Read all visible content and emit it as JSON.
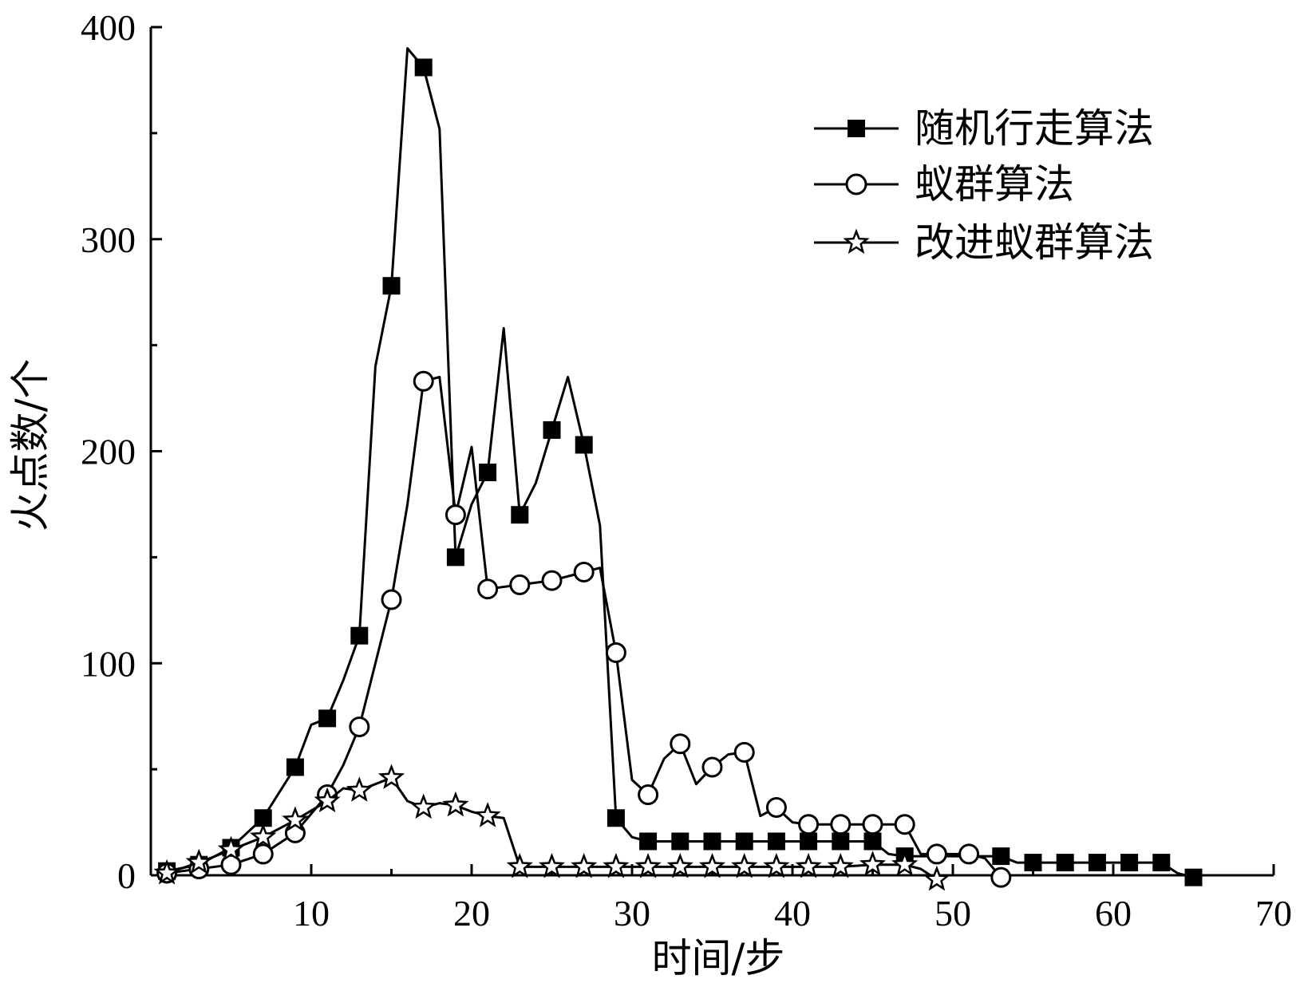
{
  "chart_data": {
    "type": "line",
    "xlabel": "时间/步",
    "ylabel": "火点数/个",
    "xlim": [
      0,
      70
    ],
    "ylim": [
      0,
      400
    ],
    "x_ticks": [
      "10",
      "20",
      "30",
      "40",
      "50",
      "60",
      "70"
    ],
    "y_ticks": [
      "0",
      "100",
      "200",
      "300",
      "400"
    ],
    "grid": false,
    "legend_position": "top-right",
    "series": [
      {
        "name": "随机行走算法",
        "marker": "filled-square",
        "line": [
          [
            1,
            2
          ],
          [
            3,
            5
          ],
          [
            5,
            13
          ],
          [
            7,
            27
          ],
          [
            9,
            51
          ],
          [
            10,
            71
          ],
          [
            11,
            74
          ],
          [
            12,
            92
          ],
          [
            13,
            113
          ],
          [
            14,
            240
          ],
          [
            15,
            278
          ],
          [
            16,
            390
          ],
          [
            17,
            381
          ],
          [
            18,
            352
          ],
          [
            19,
            150
          ],
          [
            20,
            175
          ],
          [
            21,
            190
          ],
          [
            22,
            258
          ],
          [
            23,
            170
          ],
          [
            24,
            185
          ],
          [
            25,
            210
          ],
          [
            26,
            235
          ],
          [
            27,
            203
          ],
          [
            28,
            165
          ],
          [
            29,
            27
          ],
          [
            30,
            18
          ],
          [
            31,
            16
          ],
          [
            33,
            16
          ],
          [
            35,
            16
          ],
          [
            37,
            16
          ],
          [
            39,
            16
          ],
          [
            41,
            16
          ],
          [
            43,
            16
          ],
          [
            45,
            16
          ],
          [
            46,
            10
          ],
          [
            47,
            9
          ],
          [
            49,
            9
          ],
          [
            51,
            9
          ],
          [
            53,
            9
          ],
          [
            54,
            6
          ],
          [
            55,
            6
          ],
          [
            57,
            6
          ],
          [
            59,
            6
          ],
          [
            61,
            6
          ],
          [
            63,
            6
          ],
          [
            64,
            1
          ],
          [
            65,
            -1
          ]
        ],
        "marker_points": [
          [
            1,
            2
          ],
          [
            3,
            5
          ],
          [
            5,
            13
          ],
          [
            7,
            27
          ],
          [
            9,
            51
          ],
          [
            11,
            74
          ],
          [
            13,
            113
          ],
          [
            15,
            278
          ],
          [
            17,
            381
          ],
          [
            19,
            150
          ],
          [
            21,
            190
          ],
          [
            23,
            170
          ],
          [
            25,
            210
          ],
          [
            27,
            203
          ],
          [
            29,
            27
          ],
          [
            31,
            16
          ],
          [
            33,
            16
          ],
          [
            35,
            16
          ],
          [
            37,
            16
          ],
          [
            39,
            16
          ],
          [
            41,
            16
          ],
          [
            43,
            16
          ],
          [
            45,
            16
          ],
          [
            47,
            9
          ],
          [
            53,
            9
          ],
          [
            55,
            6
          ],
          [
            57,
            6
          ],
          [
            59,
            6
          ],
          [
            61,
            6
          ],
          [
            63,
            6
          ],
          [
            65,
            -1
          ]
        ]
      },
      {
        "name": "蚁群算法",
        "marker": "open-circle",
        "line": [
          [
            1,
            1
          ],
          [
            3,
            3
          ],
          [
            5,
            5
          ],
          [
            7,
            10
          ],
          [
            9,
            20
          ],
          [
            11,
            38
          ],
          [
            12,
            52
          ],
          [
            13,
            70
          ],
          [
            14,
            100
          ],
          [
            15,
            130
          ],
          [
            16,
            175
          ],
          [
            17,
            233
          ],
          [
            18,
            235
          ],
          [
            19,
            170
          ],
          [
            20,
            202
          ],
          [
            21,
            135
          ],
          [
            23,
            137
          ],
          [
            25,
            139
          ],
          [
            27,
            143
          ],
          [
            28,
            145
          ],
          [
            29,
            105
          ],
          [
            30,
            45
          ],
          [
            31,
            38
          ],
          [
            32,
            55
          ],
          [
            33,
            62
          ],
          [
            34,
            43
          ],
          [
            35,
            51
          ],
          [
            36,
            57
          ],
          [
            37,
            58
          ],
          [
            38,
            28
          ],
          [
            39,
            32
          ],
          [
            40,
            25
          ],
          [
            41,
            24
          ],
          [
            43,
            24
          ],
          [
            45,
            24
          ],
          [
            47,
            24
          ],
          [
            48,
            10
          ],
          [
            49,
            10
          ],
          [
            51,
            10
          ],
          [
            52,
            8
          ],
          [
            53,
            -1
          ]
        ],
        "marker_points": [
          [
            1,
            1
          ],
          [
            3,
            3
          ],
          [
            5,
            5
          ],
          [
            7,
            10
          ],
          [
            9,
            20
          ],
          [
            11,
            38
          ],
          [
            13,
            70
          ],
          [
            15,
            130
          ],
          [
            17,
            233
          ],
          [
            19,
            170
          ],
          [
            21,
            135
          ],
          [
            23,
            137
          ],
          [
            25,
            139
          ],
          [
            27,
            143
          ],
          [
            29,
            105
          ],
          [
            31,
            38
          ],
          [
            33,
            62
          ],
          [
            35,
            51
          ],
          [
            37,
            58
          ],
          [
            39,
            32
          ],
          [
            41,
            24
          ],
          [
            43,
            24
          ],
          [
            45,
            24
          ],
          [
            47,
            24
          ],
          [
            49,
            10
          ],
          [
            51,
            10
          ],
          [
            53,
            -1
          ]
        ]
      },
      {
        "name": "改进蚁群算法",
        "marker": "open-star",
        "line": [
          [
            1,
            1
          ],
          [
            3,
            6
          ],
          [
            5,
            12
          ],
          [
            7,
            18
          ],
          [
            9,
            26
          ],
          [
            11,
            35
          ],
          [
            12,
            41
          ],
          [
            13,
            40
          ],
          [
            14,
            43
          ],
          [
            15,
            46
          ],
          [
            16,
            35
          ],
          [
            17,
            32
          ],
          [
            18,
            34
          ],
          [
            19,
            33
          ],
          [
            20,
            30
          ],
          [
            21,
            28
          ],
          [
            22,
            27
          ],
          [
            23,
            4
          ],
          [
            25,
            4
          ],
          [
            27,
            4
          ],
          [
            29,
            4
          ],
          [
            31,
            4
          ],
          [
            33,
            4
          ],
          [
            35,
            4
          ],
          [
            37,
            4
          ],
          [
            39,
            4
          ],
          [
            41,
            4
          ],
          [
            43,
            4
          ],
          [
            45,
            5
          ],
          [
            47,
            5
          ],
          [
            48,
            3
          ],
          [
            49,
            -2
          ]
        ],
        "marker_points": [
          [
            1,
            1
          ],
          [
            3,
            6
          ],
          [
            5,
            12
          ],
          [
            7,
            18
          ],
          [
            9,
            26
          ],
          [
            11,
            35
          ],
          [
            13,
            40
          ],
          [
            15,
            46
          ],
          [
            17,
            32
          ],
          [
            19,
            33
          ],
          [
            21,
            28
          ],
          [
            23,
            4
          ],
          [
            25,
            4
          ],
          [
            27,
            4
          ],
          [
            29,
            4
          ],
          [
            31,
            4
          ],
          [
            33,
            4
          ],
          [
            35,
            4
          ],
          [
            37,
            4
          ],
          [
            39,
            4
          ],
          [
            41,
            4
          ],
          [
            43,
            4
          ],
          [
            45,
            5
          ],
          [
            47,
            5
          ],
          [
            49,
            -2
          ]
        ]
      }
    ]
  }
}
